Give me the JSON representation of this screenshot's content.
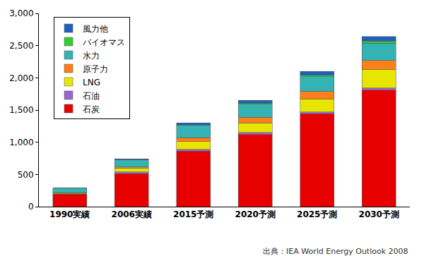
{
  "chart_data": {
    "type": "bar",
    "stacked": true,
    "categories": [
      "1990実績",
      "2006実績",
      "2015予測",
      "2020予測",
      "2025予測",
      "2030予測"
    ],
    "series": [
      {
        "name": "石炭",
        "color": "#e60000",
        "values": [
          192,
          510,
          860,
          1120,
          1440,
          1810
        ]
      },
      {
        "name": "石油",
        "color": "#9966cc",
        "values": [
          10,
          30,
          30,
          30,
          30,
          30
        ]
      },
      {
        "name": "LNG",
        "color": "#e6e600",
        "values": [
          10,
          60,
          120,
          150,
          200,
          290
        ]
      },
      {
        "name": "原子力",
        "color": "#ff7f1a",
        "values": [
          6,
          17,
          60,
          90,
          120,
          140
        ]
      },
      {
        "name": "水力",
        "color": "#33b3b3",
        "values": [
          72,
          113,
          190,
          200,
          230,
          270
        ]
      },
      {
        "name": "バイオマス",
        "color": "#33cc33",
        "values": [
          0,
          2,
          10,
          15,
          20,
          30
        ]
      },
      {
        "name": "風力他",
        "color": "#1f5fbf",
        "values": [
          0,
          12,
          30,
          45,
          60,
          70
        ]
      }
    ],
    "ylim": [
      0,
      3000
    ],
    "yticks": [
      0,
      500,
      {
        "value": 1000,
        "label": "1,000"
      },
      {
        "value": 1500,
        "label": "1,500"
      },
      {
        "value": 2000,
        "label": "2,000"
      },
      {
        "value": 2500,
        "label": "2,500"
      },
      {
        "value": 3000,
        "label": "3,000"
      }
    ],
    "grid": false,
    "legend": "upper left",
    "annotations": [
      "出典：IEA World Energy Outlook 2008"
    ]
  }
}
